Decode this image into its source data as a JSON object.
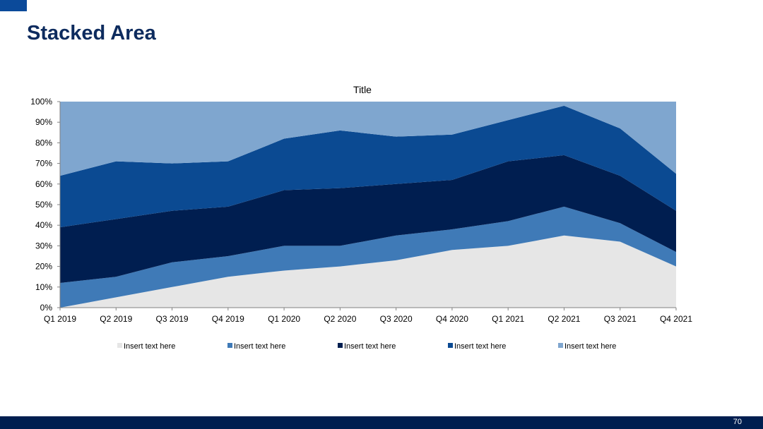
{
  "slide": {
    "title": "Stacked Area",
    "page_number": "70"
  },
  "colors": {
    "accent": "#0b4a9a",
    "footer": "#001e50",
    "title": "#0d2b5e"
  },
  "chart_data": {
    "type": "area",
    "stacked": true,
    "title": "Title",
    "xlabel": "",
    "ylabel": "",
    "ylim": [
      0,
      100
    ],
    "y_ticks": [
      "0%",
      "10%",
      "20%",
      "30%",
      "40%",
      "50%",
      "60%",
      "70%",
      "80%",
      "90%",
      "100%"
    ],
    "categories": [
      "Q1 2019",
      "Q2 2019",
      "Q3 2019",
      "Q4 2019",
      "Q1 2020",
      "Q2 2020",
      "Q3 2020",
      "Q4 2020",
      "Q1 2021",
      "Q2 2021",
      "Q3 2021",
      "Q4 2021"
    ],
    "legend_position": "bottom",
    "series": [
      {
        "name": "Insert text here",
        "color": "#e6e6e6",
        "values": [
          0,
          5,
          10,
          15,
          18,
          20,
          23,
          28,
          30,
          35,
          32,
          20
        ]
      },
      {
        "name": "Insert text here",
        "color": "#3f7ab7",
        "values": [
          12,
          10,
          12,
          10,
          12,
          10,
          12,
          10,
          12,
          14,
          9,
          7
        ]
      },
      {
        "name": "Insert text here",
        "color": "#001e50",
        "values": [
          27,
          28,
          25,
          24,
          27,
          28,
          25,
          24,
          29,
          25,
          23,
          20
        ]
      },
      {
        "name": "Insert text here",
        "color": "#0b4a92",
        "values": [
          25,
          28,
          23,
          22,
          25,
          28,
          23,
          22,
          20,
          24,
          23,
          18
        ]
      },
      {
        "name": "Insert text here",
        "color": "#7fa6cf",
        "values": [
          36,
          29,
          30,
          29,
          18,
          14,
          17,
          16,
          9,
          2,
          13,
          35
        ]
      }
    ]
  }
}
